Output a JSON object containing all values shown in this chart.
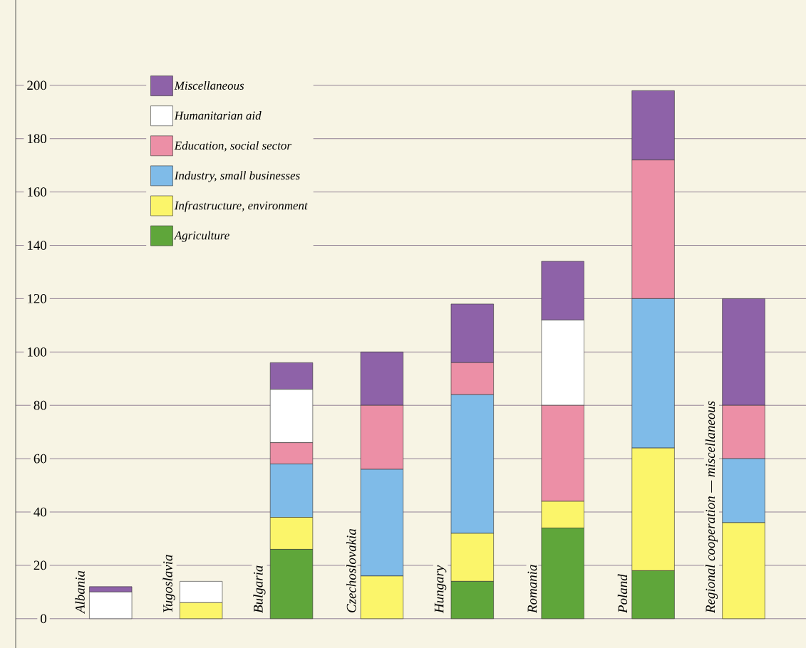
{
  "chart_data": {
    "type": "bar",
    "stacked": true,
    "categories": [
      "Albania",
      "Yugoslavia",
      "Bulgaria",
      "Czechoslovakia",
      "Hungary",
      "Romania",
      "Poland",
      "Regional cooperation — miscellaneous"
    ],
    "series": [
      {
        "name": "Agriculture",
        "color": "#5fa63a",
        "values": [
          0,
          0,
          26,
          0,
          14,
          34,
          18,
          0
        ]
      },
      {
        "name": "Infrastructure, environment",
        "color": "#fbf56a",
        "values": [
          0,
          6,
          12,
          16,
          18,
          10,
          46,
          36
        ]
      },
      {
        "name": "Industry, small businesses",
        "color": "#7fbbe8",
        "values": [
          0,
          0,
          20,
          40,
          52,
          0,
          56,
          24
        ]
      },
      {
        "name": "Education, social sector",
        "color": "#ec8fa6",
        "values": [
          0,
          0,
          8,
          24,
          12,
          36,
          52,
          20
        ]
      },
      {
        "name": "Humanitarian aid",
        "color": "#ffffff",
        "values": [
          10,
          8,
          20,
          0,
          0,
          32,
          0,
          0
        ]
      },
      {
        "name": "Miscellaneous",
        "color": "#8e62a8",
        "values": [
          2,
          0,
          10,
          20,
          22,
          22,
          26,
          40
        ]
      }
    ],
    "ylim": [
      -11,
      232
    ],
    "yticks": [
      0,
      20,
      40,
      60,
      80,
      100,
      120,
      140,
      160,
      180,
      200
    ],
    "grid": "y",
    "legend": "top left"
  }
}
